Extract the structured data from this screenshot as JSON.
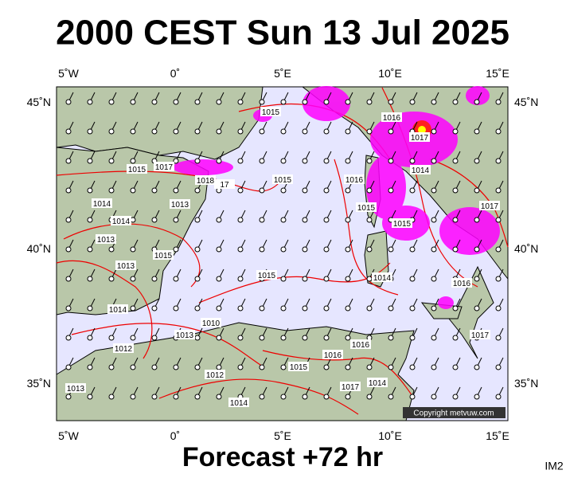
{
  "title": "2000 CEST Sun 13 Jul 2025",
  "lon_labels": [
    "5˚W",
    "0˚",
    "5˚E",
    "10˚E",
    "15˚E"
  ],
  "lat_labels": [
    "45˚N",
    "40˚N",
    "35˚N"
  ],
  "isobar_labels": [
    "1015",
    "1017",
    "1018",
    "17",
    "1014",
    "1013",
    "1014",
    "1013",
    "1015",
    "1013",
    "1014",
    "1012",
    "1013",
    "1010",
    "1015",
    "1015",
    "1015",
    "1016",
    "1016",
    "1017",
    "1015",
    "1014",
    "1015",
    "1014",
    "1017",
    "1016",
    "1017",
    "1016",
    "1016",
    "1015",
    "1014",
    "1017",
    "1013",
    "1012",
    "1014"
  ],
  "copyright": "Copyright metvuw.com",
  "subtitle": "Forecast +72 hr",
  "corner_label": "IM2"
}
